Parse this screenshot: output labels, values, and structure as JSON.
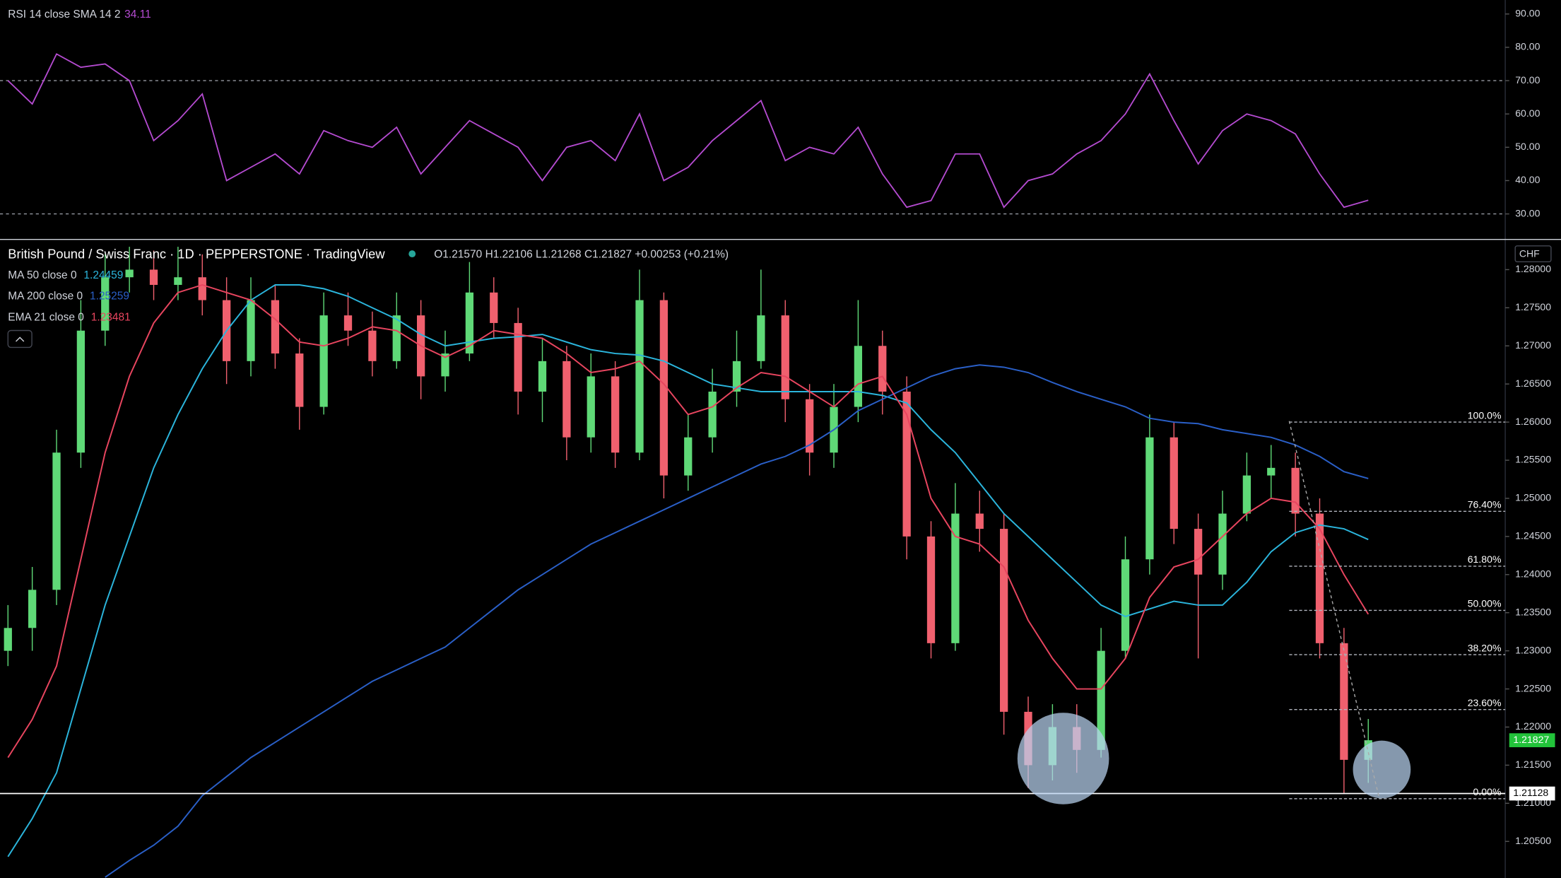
{
  "chart_data": [
    {
      "type": "line",
      "title": "RSI 14 close SMA 14 2",
      "last_value": 34.11,
      "color": "#b54bd1",
      "values": [
        70,
        63,
        78,
        74,
        75,
        70,
        52,
        58,
        66,
        40,
        44,
        48,
        42,
        55,
        52,
        50,
        56,
        42,
        50,
        58,
        54,
        50,
        40,
        50,
        52,
        46,
        60,
        40,
        44,
        52,
        58,
        64,
        46,
        50,
        48,
        56,
        42,
        32,
        34,
        48,
        48,
        32,
        40,
        42,
        48,
        52,
        60,
        72,
        58,
        45,
        55,
        60,
        58,
        54,
        42,
        32,
        34.11
      ],
      "ylim": [
        22.5,
        94.2
      ],
      "yticks": [
        {
          "value": 30,
          "label": "30.00"
        },
        {
          "value": 40,
          "label": "40.00"
        },
        {
          "value": 50,
          "label": "50.00"
        },
        {
          "value": 60,
          "label": "60.00"
        },
        {
          "value": 70,
          "label": "70.00"
        },
        {
          "value": 80,
          "label": "80.00"
        },
        {
          "value": 90,
          "label": "90.00"
        }
      ],
      "hlines": [
        70,
        30
      ]
    },
    {
      "type": "candlestick",
      "title": "British Pound / Swiss Franc · 1D · PEPPERSTONE · TradingView",
      "ohlc_text": "O1.21570 H1.22106 L1.21268 C1.21827 +0.00253 (+0.21%)",
      "up_color": "#5fd977",
      "down_color": "#f0606e",
      "open": [
        1.23,
        1.233,
        1.238,
        1.256,
        1.272,
        1.279,
        1.28,
        1.278,
        1.279,
        1.276,
        1.268,
        1.276,
        1.269,
        1.262,
        1.274,
        1.272,
        1.268,
        1.274,
        1.266,
        1.269,
        1.277,
        1.273,
        1.264,
        1.268,
        1.258,
        1.266,
        1.256,
        1.276,
        1.253,
        1.258,
        1.264,
        1.268,
        1.274,
        1.263,
        1.256,
        1.262,
        1.27,
        1.264,
        1.245,
        1.231,
        1.248,
        1.246,
        1.222,
        1.215,
        1.22,
        1.217,
        1.23,
        1.242,
        1.258,
        1.246,
        1.24,
        1.248,
        1.253,
        1.254,
        1.248,
        1.231,
        1.2157
      ],
      "high": [
        1.236,
        1.241,
        1.259,
        1.276,
        1.282,
        1.283,
        1.2825,
        1.283,
        1.282,
        1.279,
        1.279,
        1.278,
        1.271,
        1.277,
        1.277,
        1.2745,
        1.277,
        1.276,
        1.272,
        1.281,
        1.279,
        1.275,
        1.271,
        1.27,
        1.269,
        1.268,
        1.28,
        1.277,
        1.261,
        1.267,
        1.272,
        1.28,
        1.276,
        1.265,
        1.265,
        1.276,
        1.272,
        1.266,
        1.247,
        1.252,
        1.251,
        1.248,
        1.224,
        1.223,
        1.223,
        1.233,
        1.245,
        1.261,
        1.26,
        1.248,
        1.251,
        1.256,
        1.257,
        1.256,
        1.25,
        1.233,
        1.22106
      ],
      "low": [
        1.228,
        1.23,
        1.236,
        1.254,
        1.27,
        1.277,
        1.276,
        1.276,
        1.274,
        1.265,
        1.266,
        1.267,
        1.259,
        1.261,
        1.27,
        1.266,
        1.267,
        1.263,
        1.264,
        1.268,
        1.271,
        1.261,
        1.26,
        1.255,
        1.256,
        1.254,
        1.255,
        1.25,
        1.251,
        1.256,
        1.262,
        1.267,
        1.26,
        1.253,
        1.254,
        1.26,
        1.261,
        1.242,
        1.229,
        1.23,
        1.243,
        1.219,
        1.212,
        1.213,
        1.214,
        1.216,
        1.229,
        1.24,
        1.244,
        1.229,
        1.238,
        1.247,
        1.25,
        1.245,
        1.229,
        1.2113,
        1.21268
      ],
      "close": [
        1.233,
        1.238,
        1.256,
        1.272,
        1.279,
        1.28,
        1.278,
        1.279,
        1.276,
        1.268,
        1.276,
        1.269,
        1.262,
        1.274,
        1.272,
        1.268,
        1.274,
        1.266,
        1.269,
        1.277,
        1.273,
        1.264,
        1.268,
        1.258,
        1.266,
        1.256,
        1.276,
        1.253,
        1.258,
        1.264,
        1.268,
        1.274,
        1.263,
        1.256,
        1.262,
        1.27,
        1.264,
        1.245,
        1.231,
        1.248,
        1.246,
        1.222,
        1.215,
        1.22,
        1.217,
        1.23,
        1.242,
        1.258,
        1.246,
        1.24,
        1.248,
        1.253,
        1.254,
        1.248,
        1.231,
        1.2157,
        1.21827
      ],
      "series": [
        {
          "name": "MA 50 close 0",
          "last": 1.24459,
          "color": "#2bb5dc",
          "values": [
            1.203,
            1.208,
            1.214,
            1.225,
            1.236,
            1.245,
            1.254,
            1.261,
            1.267,
            1.272,
            1.276,
            1.278,
            1.278,
            1.2775,
            1.2765,
            1.275,
            1.2735,
            1.2715,
            1.27,
            1.2705,
            1.271,
            1.2712,
            1.2715,
            1.2705,
            1.2695,
            1.269,
            1.2688,
            1.268,
            1.2665,
            1.265,
            1.2645,
            1.264,
            1.264,
            1.264,
            1.264,
            1.264,
            1.2635,
            1.2625,
            1.259,
            1.256,
            1.252,
            1.248,
            1.245,
            1.242,
            1.239,
            1.236,
            1.2345,
            1.2355,
            1.2365,
            1.236,
            1.236,
            1.239,
            1.243,
            1.2455,
            1.2465,
            1.246,
            1.2446
          ]
        },
        {
          "name": "MA 200 close 0",
          "last": 1.25259,
          "color": "#2a5fc7",
          "values": [
            null,
            null,
            null,
            null,
            1.2003,
            1.2025,
            1.2045,
            1.207,
            1.211,
            1.2135,
            1.216,
            1.218,
            1.22,
            1.222,
            1.224,
            1.226,
            1.2275,
            1.229,
            1.2305,
            1.233,
            1.2355,
            1.238,
            1.24,
            1.242,
            1.244,
            1.2455,
            1.247,
            1.2485,
            1.25,
            1.2515,
            1.253,
            1.2545,
            1.2555,
            1.257,
            1.259,
            1.2615,
            1.263,
            1.2645,
            1.266,
            1.267,
            1.2675,
            1.2672,
            1.2665,
            1.2652,
            1.264,
            1.263,
            1.262,
            1.2605,
            1.26,
            1.2598,
            1.259,
            1.2585,
            1.258,
            1.257,
            1.2555,
            1.2535,
            1.2526
          ]
        },
        {
          "name": "EMA 21 close 0",
          "last": 1.23481,
          "color": "#e8455f",
          "values": [
            1.216,
            1.221,
            1.228,
            1.242,
            1.256,
            1.266,
            1.273,
            1.277,
            1.278,
            1.277,
            1.276,
            1.2735,
            1.2705,
            1.27,
            1.271,
            1.2725,
            1.272,
            1.27,
            1.2685,
            1.27,
            1.272,
            1.2715,
            1.271,
            1.269,
            1.2665,
            1.267,
            1.268,
            1.265,
            1.261,
            1.262,
            1.2645,
            1.2665,
            1.266,
            1.264,
            1.262,
            1.265,
            1.266,
            1.261,
            1.25,
            1.245,
            1.244,
            1.241,
            1.234,
            1.229,
            1.225,
            1.225,
            1.229,
            1.237,
            1.241,
            1.242,
            1.245,
            1.248,
            1.25,
            1.2495,
            1.246,
            1.24,
            1.2348
          ]
        }
      ],
      "fib": [
        {
          "label": "100.0%",
          "price": 1.26
        },
        {
          "label": "76.40%",
          "price": 1.2483
        },
        {
          "label": "61.80%",
          "price": 1.2411
        },
        {
          "label": "50.00%",
          "price": 1.2353
        },
        {
          "label": "38.20%",
          "price": 1.2295
        },
        {
          "label": "23.60%",
          "price": 1.2223
        },
        {
          "label": "0.00%",
          "price": 1.2106
        }
      ],
      "hline": 1.21128,
      "last_price": 1.21827,
      "currency": "CHF",
      "ylim": [
        1.2002,
        1.2839
      ],
      "yticks": [
        {
          "value": 1.205,
          "label": "1.20500"
        },
        {
          "value": 1.21,
          "label": "1.21000"
        },
        {
          "value": 1.215,
          "label": "1.21500"
        },
        {
          "value": 1.22,
          "label": "1.22000"
        },
        {
          "value": 1.225,
          "label": "1.22500"
        },
        {
          "value": 1.23,
          "label": "1.23000"
        },
        {
          "value": 1.235,
          "label": "1.23500"
        },
        {
          "value": 1.24,
          "label": "1.24000"
        },
        {
          "value": 1.245,
          "label": "1.24500"
        },
        {
          "value": 1.25,
          "label": "1.25000"
        },
        {
          "value": 1.255,
          "label": "1.25500"
        },
        {
          "value": 1.26,
          "label": "1.26000"
        },
        {
          "value": 1.265,
          "label": "1.26500"
        },
        {
          "value": 1.27,
          "label": "1.27000"
        },
        {
          "value": 1.275,
          "label": "1.27500"
        },
        {
          "value": 1.28,
          "label": "1.28000"
        }
      ]
    }
  ]
}
